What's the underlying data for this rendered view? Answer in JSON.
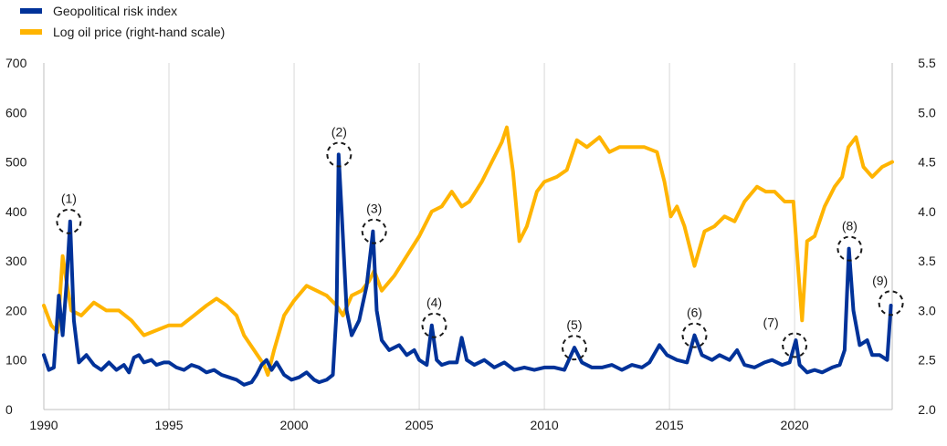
{
  "chart_data": {
    "type": "line",
    "title": "",
    "legend": {
      "placement": "top-left",
      "entries": [
        "Geopolitical risk index",
        "Log oil price (right-hand scale)"
      ]
    },
    "x_axis": {
      "range": [
        1990,
        2023.9
      ],
      "ticks": [
        "1990",
        "1995",
        "2000",
        "2005",
        "2010",
        "2015",
        "2020"
      ]
    },
    "y_left": {
      "range": [
        0,
        700
      ],
      "ticks": [
        "0",
        "100",
        "200",
        "300",
        "400",
        "500",
        "600",
        "700"
      ]
    },
    "y_right": {
      "range": [
        2.0,
        5.5
      ],
      "ticks": [
        "2.0",
        "2.5",
        "3.0",
        "3.5",
        "4.0",
        "4.5",
        "5.0",
        "5.5"
      ]
    },
    "grid": "vertical",
    "series": [
      {
        "name": "Geopolitical risk index",
        "axis": "left",
        "color": "#003299",
        "points": [
          [
            1990.0,
            110
          ],
          [
            1990.2,
            80
          ],
          [
            1990.4,
            85
          ],
          [
            1990.6,
            230
          ],
          [
            1990.75,
            150
          ],
          [
            1990.9,
            250
          ],
          [
            1991.05,
            380
          ],
          [
            1991.2,
            180
          ],
          [
            1991.4,
            95
          ],
          [
            1991.7,
            110
          ],
          [
            1992.0,
            90
          ],
          [
            1992.3,
            80
          ],
          [
            1992.6,
            95
          ],
          [
            1992.9,
            80
          ],
          [
            1993.2,
            90
          ],
          [
            1993.4,
            75
          ],
          [
            1993.6,
            105
          ],
          [
            1993.8,
            110
          ],
          [
            1994.0,
            95
          ],
          [
            1994.3,
            100
          ],
          [
            1994.5,
            90
          ],
          [
            1994.8,
            95
          ],
          [
            1995.0,
            95
          ],
          [
            1995.3,
            85
          ],
          [
            1995.6,
            80
          ],
          [
            1995.9,
            90
          ],
          [
            1996.2,
            85
          ],
          [
            1996.5,
            75
          ],
          [
            1996.8,
            80
          ],
          [
            1997.1,
            70
          ],
          [
            1997.4,
            65
          ],
          [
            1997.7,
            60
          ],
          [
            1998.0,
            50
          ],
          [
            1998.3,
            55
          ],
          [
            1998.5,
            70
          ],
          [
            1998.7,
            90
          ],
          [
            1998.9,
            100
          ],
          [
            1999.1,
            80
          ],
          [
            1999.3,
            95
          ],
          [
            1999.6,
            70
          ],
          [
            1999.9,
            60
          ],
          [
            2000.2,
            65
          ],
          [
            2000.5,
            75
          ],
          [
            2000.8,
            60
          ],
          [
            2001.0,
            55
          ],
          [
            2001.3,
            60
          ],
          [
            2001.55,
            70
          ],
          [
            2001.7,
            200
          ],
          [
            2001.78,
            515
          ],
          [
            2001.9,
            400
          ],
          [
            2002.1,
            200
          ],
          [
            2002.3,
            150
          ],
          [
            2002.6,
            180
          ],
          [
            2002.9,
            250
          ],
          [
            2003.15,
            360
          ],
          [
            2003.3,
            200
          ],
          [
            2003.5,
            140
          ],
          [
            2003.8,
            120
          ],
          [
            2004.2,
            130
          ],
          [
            2004.5,
            110
          ],
          [
            2004.8,
            120
          ],
          [
            2005.0,
            100
          ],
          [
            2005.3,
            90
          ],
          [
            2005.5,
            170
          ],
          [
            2005.7,
            100
          ],
          [
            2005.9,
            90
          ],
          [
            2006.2,
            95
          ],
          [
            2006.5,
            95
          ],
          [
            2006.7,
            145
          ],
          [
            2006.9,
            100
          ],
          [
            2007.2,
            90
          ],
          [
            2007.6,
            100
          ],
          [
            2008.0,
            85
          ],
          [
            2008.4,
            95
          ],
          [
            2008.8,
            80
          ],
          [
            2009.2,
            85
          ],
          [
            2009.6,
            80
          ],
          [
            2010.0,
            85
          ],
          [
            2010.4,
            85
          ],
          [
            2010.8,
            80
          ],
          [
            2011.2,
            125
          ],
          [
            2011.5,
            95
          ],
          [
            2011.9,
            85
          ],
          [
            2012.3,
            85
          ],
          [
            2012.7,
            90
          ],
          [
            2013.1,
            80
          ],
          [
            2013.5,
            90
          ],
          [
            2013.9,
            85
          ],
          [
            2014.2,
            95
          ],
          [
            2014.6,
            130
          ],
          [
            2014.9,
            110
          ],
          [
            2015.3,
            100
          ],
          [
            2015.7,
            95
          ],
          [
            2016.0,
            150
          ],
          [
            2016.3,
            110
          ],
          [
            2016.7,
            100
          ],
          [
            2017.0,
            110
          ],
          [
            2017.4,
            100
          ],
          [
            2017.7,
            120
          ],
          [
            2018.0,
            90
          ],
          [
            2018.4,
            85
          ],
          [
            2018.8,
            95
          ],
          [
            2019.1,
            100
          ],
          [
            2019.5,
            90
          ],
          [
            2019.8,
            95
          ],
          [
            2020.05,
            140
          ],
          [
            2020.2,
            90
          ],
          [
            2020.5,
            75
          ],
          [
            2020.8,
            80
          ],
          [
            2021.1,
            75
          ],
          [
            2021.5,
            85
          ],
          [
            2021.8,
            90
          ],
          [
            2022.0,
            120
          ],
          [
            2022.17,
            325
          ],
          [
            2022.35,
            200
          ],
          [
            2022.6,
            130
          ],
          [
            2022.9,
            140
          ],
          [
            2023.1,
            110
          ],
          [
            2023.4,
            110
          ],
          [
            2023.7,
            100
          ],
          [
            2023.85,
            210
          ]
        ]
      },
      {
        "name": "Log oil price (right-hand scale)",
        "axis": "right",
        "color": "#ffb400",
        "points": [
          [
            1990.0,
            3.05
          ],
          [
            1990.3,
            2.85
          ],
          [
            1990.55,
            2.78
          ],
          [
            1990.75,
            3.55
          ],
          [
            1990.9,
            3.3
          ],
          [
            1991.1,
            3.0
          ],
          [
            1991.5,
            2.95
          ],
          [
            1992.0,
            3.08
          ],
          [
            1992.5,
            3.0
          ],
          [
            1993.0,
            3.0
          ],
          [
            1993.5,
            2.9
          ],
          [
            1994.0,
            2.75
          ],
          [
            1994.5,
            2.8
          ],
          [
            1995.0,
            2.85
          ],
          [
            1995.5,
            2.85
          ],
          [
            1996.0,
            2.95
          ],
          [
            1996.5,
            3.05
          ],
          [
            1996.9,
            3.12
          ],
          [
            1997.3,
            3.05
          ],
          [
            1997.7,
            2.95
          ],
          [
            1998.0,
            2.75
          ],
          [
            1998.4,
            2.6
          ],
          [
            1998.8,
            2.45
          ],
          [
            1998.95,
            2.35
          ],
          [
            1999.2,
            2.6
          ],
          [
            1999.6,
            2.95
          ],
          [
            2000.0,
            3.1
          ],
          [
            2000.5,
            3.25
          ],
          [
            2000.9,
            3.2
          ],
          [
            2001.3,
            3.15
          ],
          [
            2001.7,
            3.05
          ],
          [
            2001.95,
            2.95
          ],
          [
            2002.3,
            3.15
          ],
          [
            2002.7,
            3.2
          ],
          [
            2003.0,
            3.3
          ],
          [
            2003.2,
            3.4
          ],
          [
            2003.5,
            3.2
          ],
          [
            2004.0,
            3.35
          ],
          [
            2004.5,
            3.55
          ],
          [
            2005.0,
            3.75
          ],
          [
            2005.5,
            4.0
          ],
          [
            2005.9,
            4.05
          ],
          [
            2006.3,
            4.2
          ],
          [
            2006.7,
            4.05
          ],
          [
            2007.0,
            4.1
          ],
          [
            2007.5,
            4.3
          ],
          [
            2007.9,
            4.5
          ],
          [
            2008.3,
            4.7
          ],
          [
            2008.5,
            4.85
          ],
          [
            2008.75,
            4.4
          ],
          [
            2009.0,
            3.7
          ],
          [
            2009.3,
            3.85
          ],
          [
            2009.7,
            4.2
          ],
          [
            2010.0,
            4.3
          ],
          [
            2010.5,
            4.35
          ],
          [
            2010.9,
            4.42
          ],
          [
            2011.3,
            4.72
          ],
          [
            2011.7,
            4.65
          ],
          [
            2012.2,
            4.75
          ],
          [
            2012.6,
            4.6
          ],
          [
            2013.0,
            4.65
          ],
          [
            2013.5,
            4.65
          ],
          [
            2014.0,
            4.65
          ],
          [
            2014.5,
            4.6
          ],
          [
            2014.8,
            4.3
          ],
          [
            2015.05,
            3.95
          ],
          [
            2015.3,
            4.05
          ],
          [
            2015.6,
            3.85
          ],
          [
            2016.0,
            3.45
          ],
          [
            2016.4,
            3.8
          ],
          [
            2016.8,
            3.85
          ],
          [
            2017.2,
            3.95
          ],
          [
            2017.6,
            3.9
          ],
          [
            2018.0,
            4.1
          ],
          [
            2018.5,
            4.25
          ],
          [
            2018.85,
            4.2
          ],
          [
            2019.2,
            4.2
          ],
          [
            2019.6,
            4.1
          ],
          [
            2019.95,
            4.1
          ],
          [
            2020.15,
            3.4
          ],
          [
            2020.3,
            2.9
          ],
          [
            2020.5,
            3.7
          ],
          [
            2020.8,
            3.75
          ],
          [
            2021.2,
            4.05
          ],
          [
            2021.6,
            4.25
          ],
          [
            2021.9,
            4.35
          ],
          [
            2022.15,
            4.65
          ],
          [
            2022.45,
            4.75
          ],
          [
            2022.75,
            4.45
          ],
          [
            2023.1,
            4.35
          ],
          [
            2023.5,
            4.45
          ],
          [
            2023.9,
            4.5
          ]
        ]
      }
    ],
    "annotations": [
      {
        "label": "(1)",
        "x": 1991.0,
        "y": 380
      },
      {
        "label": "(2)",
        "x": 2001.8,
        "y": 515
      },
      {
        "label": "(3)",
        "x": 2003.2,
        "y": 360
      },
      {
        "label": "(4)",
        "x": 2005.6,
        "y": 170
      },
      {
        "label": "(5)",
        "x": 2011.2,
        "y": 125
      },
      {
        "label": "(6)",
        "x": 2016.0,
        "y": 150
      },
      {
        "label": "(7)",
        "x": 2020.0,
        "y": 130
      },
      {
        "label": "(8)",
        "x": 2022.2,
        "y": 325
      },
      {
        "label": "(9)",
        "x": 2023.85,
        "y": 215
      }
    ]
  }
}
